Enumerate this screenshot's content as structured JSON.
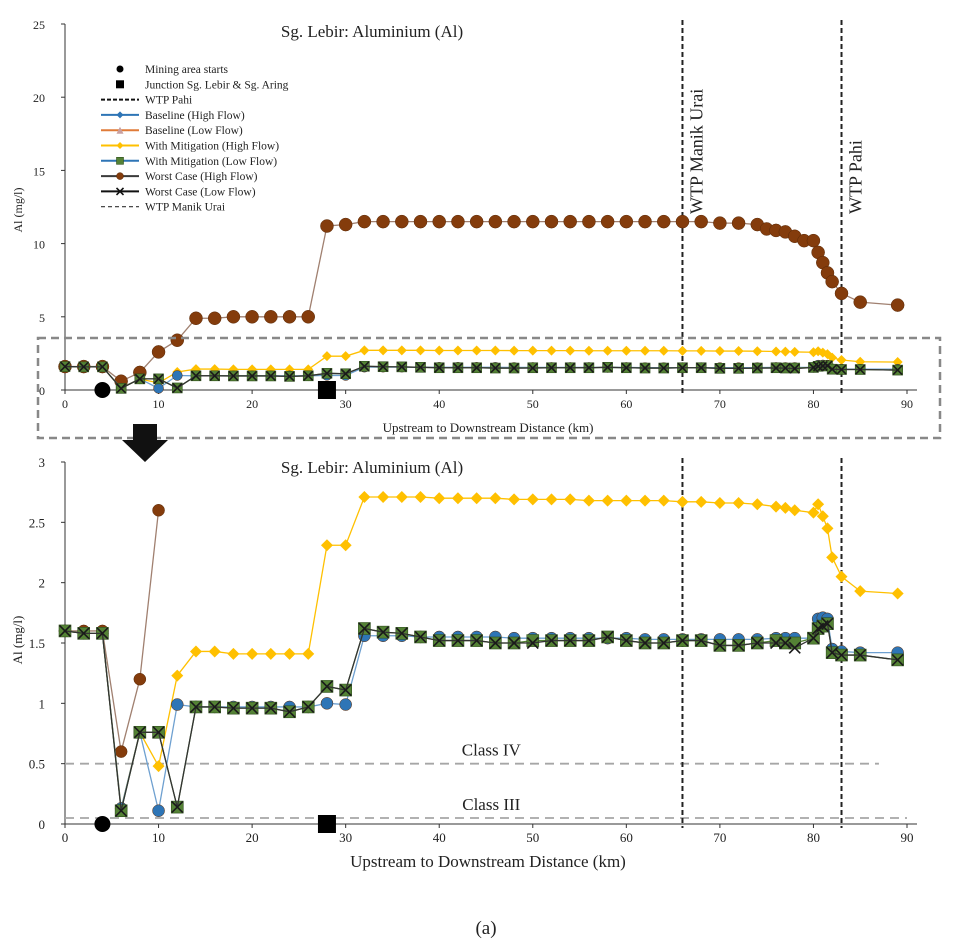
{
  "figure_caption": "(a)",
  "colors": {
    "baseline_high": "#2e75b6",
    "baseline_low": "#e07b39",
    "mitigation_high": "#ffc000",
    "mitigation_low": "#548235",
    "worst_high": "#843c0c",
    "worst_low": "#1a1a1a",
    "wtp_line": "#222222",
    "class_line": "#a6a6a6",
    "zoom_box": "#888888"
  },
  "chart_data": [
    {
      "id": "top",
      "type": "line",
      "title": "Sg. Lebir: Aluminium (Al)",
      "xlabel": "Upstream to Downstream Distance (km)",
      "ylabel": "Al (mg/l)",
      "xlim": [
        0,
        90
      ],
      "ylim": [
        0,
        25
      ],
      "xticks": [
        0,
        10,
        20,
        30,
        40,
        50,
        60,
        70,
        80,
        90
      ],
      "yticks": [
        0,
        5,
        10,
        15,
        20,
        25
      ],
      "legend": [
        {
          "key": "mining",
          "label": "Mining area starts",
          "symbol": "dot"
        },
        {
          "key": "junction",
          "label": "Junction Sg. Lebir & Sg. Aring",
          "symbol": "square"
        },
        {
          "key": "wtp_pahi",
          "label": "WTP Pahi",
          "symbol": "dash-bold"
        },
        {
          "key": "baseline_high",
          "label": "Baseline (High Flow)",
          "symbol": "line-diamond"
        },
        {
          "key": "baseline_low",
          "label": "Baseline (Low Flow)",
          "symbol": "line-triangle"
        },
        {
          "key": "mitigation_high",
          "label": "With Mitigation (High Flow)",
          "symbol": "line-diamond"
        },
        {
          "key": "mitigation_low",
          "label": "With Mitigation (Low Flow)",
          "symbol": "line-square"
        },
        {
          "key": "worst_high",
          "label": "Worst Case (High Flow)",
          "symbol": "line-circle"
        },
        {
          "key": "worst_low",
          "label": "Worst Case (Low Flow)",
          "symbol": "line-x"
        },
        {
          "key": "wtp_manik",
          "label": "WTP Manik Urai",
          "symbol": "dash"
        }
      ],
      "vlines": [
        {
          "x": 66,
          "label": "WTP Manik Urai"
        },
        {
          "x": 83,
          "label": "WTP Pahi"
        }
      ],
      "markers": [
        {
          "name": "mining-area-start",
          "x": 4,
          "y": 0,
          "shape": "dot"
        },
        {
          "name": "junction-lebir-aring",
          "x": 28,
          "y": 0,
          "shape": "square"
        }
      ],
      "zoom_arrow": true,
      "series": [
        {
          "key": "worst_high",
          "name": "Worst Case (High Flow)",
          "marker": "circle",
          "x": [
            0,
            2,
            4,
            6,
            8,
            10,
            12,
            14,
            16,
            18,
            20,
            22,
            24,
            26,
            28,
            30,
            32,
            34,
            36,
            38,
            40,
            42,
            44,
            46,
            48,
            50,
            52,
            54,
            56,
            58,
            60,
            62,
            64,
            66,
            68,
            70,
            72,
            74,
            75,
            76,
            77,
            78,
            79,
            80,
            80.5,
            81,
            81.5,
            82,
            83,
            85,
            89
          ],
          "y": [
            1.6,
            1.6,
            1.6,
            0.6,
            1.2,
            2.6,
            3.4,
            4.9,
            4.9,
            5.0,
            5.0,
            5.0,
            5.0,
            5.0,
            11.2,
            11.3,
            11.5,
            11.5,
            11.5,
            11.5,
            11.5,
            11.5,
            11.5,
            11.5,
            11.5,
            11.5,
            11.5,
            11.5,
            11.5,
            11.5,
            11.5,
            11.5,
            11.5,
            11.5,
            11.5,
            11.4,
            11.4,
            11.3,
            11.0,
            10.9,
            10.8,
            10.5,
            10.2,
            10.2,
            9.4,
            8.7,
            8.0,
            7.4,
            6.6,
            6.0,
            5.8
          ]
        },
        {
          "key": "mitigation_high",
          "name": "With Mitigation (High Flow)",
          "marker": "diamond",
          "x": [
            0,
            2,
            4,
            6,
            8,
            10,
            12,
            14,
            16,
            18,
            20,
            22,
            24,
            26,
            28,
            30,
            32,
            34,
            36,
            38,
            40,
            42,
            44,
            46,
            48,
            50,
            52,
            54,
            56,
            58,
            60,
            62,
            64,
            66,
            68,
            70,
            72,
            74,
            76,
            77,
            78,
            80,
            80.5,
            81,
            81.5,
            82,
            83,
            85,
            89
          ],
          "y": [
            1.6,
            1.58,
            1.58,
            0.13,
            0.76,
            0.48,
            1.23,
            1.43,
            1.43,
            1.41,
            1.41,
            1.41,
            1.41,
            1.41,
            2.31,
            2.31,
            2.71,
            2.71,
            2.71,
            2.71,
            2.7,
            2.7,
            2.7,
            2.7,
            2.69,
            2.69,
            2.69,
            2.69,
            2.68,
            2.68,
            2.68,
            2.68,
            2.68,
            2.67,
            2.67,
            2.66,
            2.66,
            2.65,
            2.63,
            2.62,
            2.6,
            2.58,
            2.65,
            2.55,
            2.45,
            2.21,
            2.05,
            1.93,
            1.91
          ]
        },
        {
          "key": "baseline_high",
          "name": "Baseline (High Flow)",
          "marker": "circle",
          "x": [
            0,
            2,
            4,
            6,
            8,
            10,
            12,
            14,
            16,
            18,
            20,
            22,
            24,
            26,
            28,
            30,
            32,
            34,
            36,
            38,
            40,
            42,
            44,
            46,
            48,
            50,
            52,
            54,
            56,
            58,
            60,
            62,
            64,
            66,
            68,
            70,
            72,
            74,
            76,
            77,
            78,
            80,
            80.5,
            81,
            81.5,
            82,
            83,
            85,
            89
          ],
          "y": [
            1.6,
            1.58,
            1.58,
            0.13,
            0.76,
            0.11,
            0.99,
            0.97,
            0.97,
            0.97,
            0.97,
            0.97,
            0.97,
            0.97,
            1.0,
            0.99,
            1.56,
            1.56,
            1.56,
            1.55,
            1.55,
            1.55,
            1.55,
            1.55,
            1.54,
            1.54,
            1.54,
            1.54,
            1.54,
            1.54,
            1.54,
            1.53,
            1.53,
            1.53,
            1.53,
            1.53,
            1.53,
            1.53,
            1.54,
            1.54,
            1.54,
            1.54,
            1.7,
            1.71,
            1.7,
            1.45,
            1.43,
            1.42,
            1.42
          ]
        },
        {
          "key": "mitigation_low",
          "name": "With Mitigation (Low Flow)",
          "marker": "square",
          "x": [
            0,
            2,
            4,
            6,
            8,
            10,
            12,
            14,
            16,
            18,
            20,
            22,
            24,
            26,
            28,
            30,
            32,
            34,
            36,
            38,
            40,
            42,
            44,
            46,
            48,
            50,
            52,
            54,
            56,
            58,
            60,
            62,
            64,
            66,
            68,
            70,
            72,
            74,
            76,
            77,
            78,
            80,
            80.5,
            81,
            81.5,
            82,
            83,
            85,
            89
          ],
          "y": [
            1.6,
            1.58,
            1.58,
            0.11,
            0.76,
            0.76,
            0.14,
            0.97,
            0.97,
            0.96,
            0.96,
            0.96,
            0.93,
            0.97,
            1.14,
            1.11,
            1.62,
            1.59,
            1.58,
            1.55,
            1.52,
            1.52,
            1.52,
            1.5,
            1.5,
            1.52,
            1.52,
            1.52,
            1.52,
            1.55,
            1.52,
            1.5,
            1.5,
            1.52,
            1.52,
            1.48,
            1.48,
            1.5,
            1.52,
            1.5,
            1.5,
            1.54,
            1.62,
            1.64,
            1.66,
            1.42,
            1.4,
            1.4,
            1.36
          ]
        },
        {
          "key": "worst_low",
          "name": "Worst Case (Low Flow)",
          "marker": "x",
          "x": [
            0,
            2,
            4,
            6,
            8,
            10,
            12,
            14,
            16,
            18,
            20,
            22,
            24,
            26,
            28,
            30,
            32,
            34,
            36,
            38,
            40,
            42,
            44,
            46,
            48,
            50,
            52,
            54,
            56,
            58,
            60,
            62,
            64,
            66,
            68,
            70,
            72,
            74,
            76,
            77,
            78,
            80,
            80.5,
            81,
            81.5,
            82,
            83,
            85,
            89
          ],
          "y": [
            1.6,
            1.58,
            1.58,
            0.11,
            0.76,
            0.76,
            0.14,
            0.97,
            0.97,
            0.96,
            0.96,
            0.96,
            0.93,
            0.97,
            1.14,
            1.11,
            1.62,
            1.59,
            1.58,
            1.55,
            1.52,
            1.52,
            1.52,
            1.5,
            1.5,
            1.5,
            1.52,
            1.52,
            1.52,
            1.55,
            1.52,
            1.5,
            1.5,
            1.52,
            1.52,
            1.48,
            1.48,
            1.5,
            1.5,
            1.5,
            1.46,
            1.54,
            1.62,
            1.64,
            1.66,
            1.42,
            1.4,
            1.4,
            1.36
          ]
        }
      ]
    },
    {
      "id": "bottom",
      "type": "line",
      "title": "Sg. Lebir: Aluminium (Al)",
      "xlabel": "Upstream to Downstream Distance (km)",
      "ylabel": "Al (mg/l)",
      "xlim": [
        0,
        90
      ],
      "ylim": [
        0,
        3
      ],
      "xticks": [
        0,
        10,
        20,
        30,
        40,
        50,
        60,
        70,
        80,
        90
      ],
      "yticks": [
        0,
        0.5,
        1,
        1.5,
        2,
        2.5,
        3
      ],
      "ytick_labels": [
        "0",
        "0.5",
        "1",
        "1.5",
        "2",
        "2.5",
        "3"
      ],
      "vlines": [
        {
          "x": 66,
          "label": ""
        },
        {
          "x": 83,
          "label": ""
        }
      ],
      "hlines": [
        {
          "y": 0.5,
          "label": "Class IV",
          "x_end": 87
        },
        {
          "y": 0.05,
          "label": "Class III",
          "x_end": 90
        }
      ],
      "markers": [
        {
          "name": "mining-area-start",
          "x": 4,
          "y": 0,
          "shape": "dot"
        },
        {
          "name": "junction-lebir-aring",
          "x": 28,
          "y": 0,
          "shape": "square"
        }
      ],
      "series_ref": "top"
    }
  ]
}
